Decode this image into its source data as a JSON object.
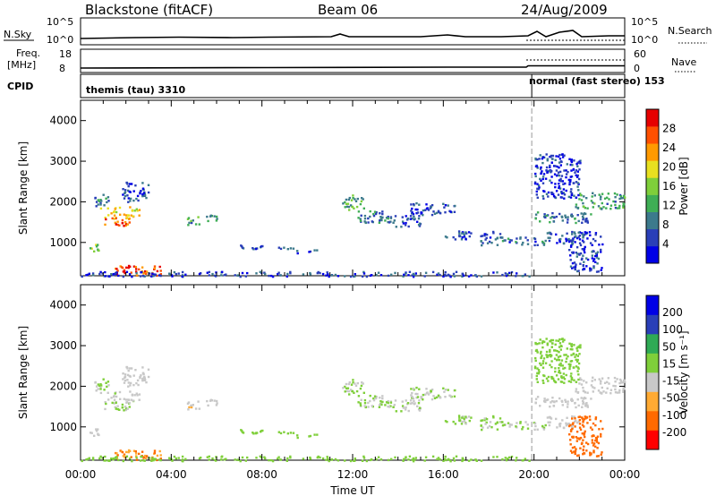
{
  "header": {
    "station": "Blackstone (fitACF)",
    "beam": "Beam 06",
    "date": "24/Aug/2009"
  },
  "strips": {
    "nsky": {
      "label": "N.Sky",
      "yticks": [
        "10^5",
        "10^0"
      ],
      "right_label": "N.Search",
      "right_yticks": [
        "10^5",
        "10^0"
      ]
    },
    "freq": {
      "label_line1": "Freq.",
      "label_line2": "[MHz]",
      "yticks": [
        "18",
        "8"
      ],
      "right_label": "Nave",
      "right_yticks": [
        "60",
        "0"
      ]
    },
    "cpid": {
      "label": "CPID",
      "mode1": "themis (tau) 3310",
      "mode2": "normal (fast stereo) 153",
      "mode_change_hour": 19.9
    }
  },
  "panels": {
    "power": {
      "ylabel": "Slant Range [km]",
      "cbar_label": "Power [dB]",
      "cbar_ticks": [
        "28",
        "24",
        "20",
        "16",
        "12",
        "8",
        "4"
      ]
    },
    "velocity": {
      "ylabel": "Slant Range [km]",
      "cbar_label": "Velocity [m s⁻¹]",
      "cbar_ticks": [
        "200",
        "100",
        "50",
        "15",
        "-15",
        "-50",
        "-100",
        "-200"
      ]
    }
  },
  "colors": {
    "power_scale": [
      "#0000e6",
      "#2a3fb8",
      "#3c7a8c",
      "#3fae55",
      "#7fcf3a",
      "#e8e020",
      "#ff9a00",
      "#ff5000",
      "#e60000"
    ],
    "velocity_scale": [
      "#ff0000",
      "#ff6a00",
      "#ffaa33",
      "#c8c8c8",
      "#7fcf3a",
      "#2faa55",
      "#2a3fb8",
      "#0000e6"
    ]
  },
  "chart_data": {
    "type": "heatmap",
    "xlabel": "Time UT",
    "xticks": [
      "00:00",
      "04:00",
      "08:00",
      "12:00",
      "16:00",
      "20:00",
      "00:00"
    ],
    "xlim_hours": [
      0,
      24
    ],
    "ylim_km": [
      180,
      4500
    ],
    "yticks": [
      "1000",
      "2000",
      "3000",
      "4000"
    ],
    "power_range_db": [
      0,
      30
    ],
    "velocity_range": [
      -250,
      250
    ],
    "regions": [
      {
        "t0": 0.3,
        "t1": 0.8,
        "r0": 800,
        "r1": 1000,
        "power": 14,
        "vel": -20
      },
      {
        "t0": 0.6,
        "t1": 1.2,
        "r0": 1900,
        "r1": 2200,
        "power": 8,
        "vel": 0
      },
      {
        "t0": 0.8,
        "t1": 2.6,
        "r0": 1600,
        "r1": 1900,
        "power": 20,
        "vel": -10
      },
      {
        "t0": 1.0,
        "t1": 2.2,
        "r0": 1400,
        "r1": 1600,
        "power": 24,
        "vel": 5
      },
      {
        "t0": 1.8,
        "t1": 3.0,
        "r0": 2000,
        "r1": 2500,
        "power": 6,
        "vel": -30
      },
      {
        "t0": 4.5,
        "t1": 5.2,
        "r0": 1450,
        "r1": 1650,
        "power": 10,
        "vel": -60
      },
      {
        "t0": 5.5,
        "t1": 6.0,
        "r0": 1550,
        "r1": 1700,
        "power": 9,
        "vel": -50
      },
      {
        "t0": 7.0,
        "t1": 9.5,
        "r0": 850,
        "r1": 950,
        "power": 6,
        "vel": 20
      },
      {
        "t0": 9.5,
        "t1": 10.5,
        "r0": 750,
        "r1": 850,
        "power": 6,
        "vel": 40
      },
      {
        "t0": 11.5,
        "t1": 12.5,
        "r0": 1800,
        "r1": 2200,
        "power": 12,
        "vel": 10
      },
      {
        "t0": 12.2,
        "t1": 13.8,
        "r0": 1500,
        "r1": 1800,
        "power": 8,
        "vel": 0
      },
      {
        "t0": 13.5,
        "t1": 15.0,
        "r0": 1400,
        "r1": 1700,
        "power": 6,
        "vel": -10
      },
      {
        "t0": 14.5,
        "t1": 16.5,
        "r0": 1700,
        "r1": 2000,
        "power": 5,
        "vel": -5
      },
      {
        "t0": 16.0,
        "t1": 18.5,
        "r0": 1100,
        "r1": 1300,
        "power": 6,
        "vel": 10
      },
      {
        "t0": 17.5,
        "t1": 20.5,
        "r0": 950,
        "r1": 1150,
        "power": 7,
        "vel": 0
      },
      {
        "t0": 20.0,
        "t1": 22.5,
        "r0": 1500,
        "r1": 1800,
        "power": 8,
        "vel": -20
      },
      {
        "t0": 20.5,
        "t1": 22.0,
        "r0": 1000,
        "r1": 1300,
        "power": 6,
        "vel": -40
      },
      {
        "t0": 21.8,
        "t1": 24.0,
        "r0": 1850,
        "r1": 2250,
        "power": 10,
        "vel": -40
      },
      {
        "t0": 20.0,
        "t1": 22.0,
        "r0": 2100,
        "r1": 3200,
        "power": 4,
        "vel": 30
      },
      {
        "t0": 1.5,
        "t1": 3.5,
        "r0": 200,
        "r1": 450,
        "power": 26,
        "vel": -120
      },
      {
        "t0": 0.0,
        "t1": 20.0,
        "r0": 180,
        "r1": 300,
        "power": 5,
        "vel": 25
      },
      {
        "t0": 21.5,
        "t1": 23.0,
        "r0": 300,
        "r1": 1300,
        "power": 4,
        "vel": -150
      }
    ]
  }
}
